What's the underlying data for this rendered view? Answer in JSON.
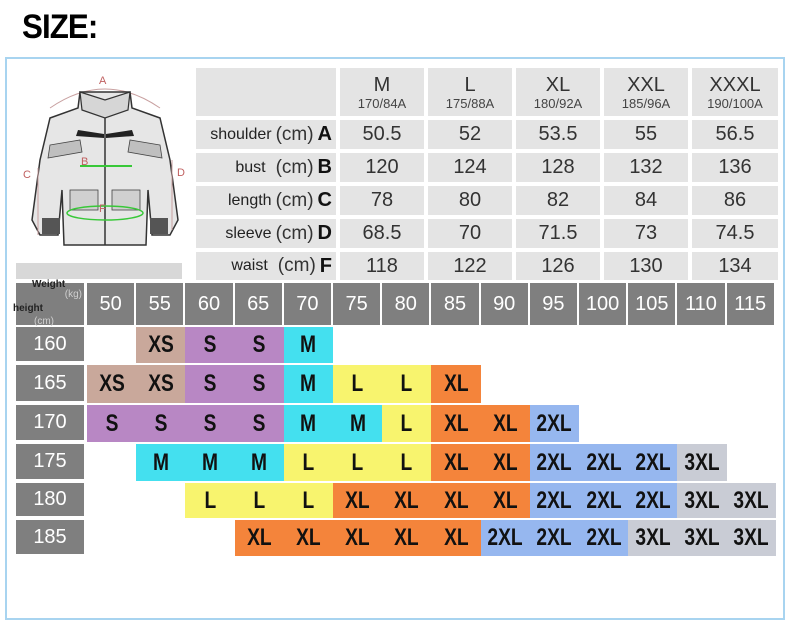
{
  "title": "SIZE:",
  "diagram": {
    "labels": {
      "a": "A",
      "b": "B",
      "c": "C",
      "d": "D",
      "f": "F"
    }
  },
  "measure_table": {
    "sizes": [
      {
        "size": "M",
        "hw": "170/84A"
      },
      {
        "size": "L",
        "hw": "175/88A"
      },
      {
        "size": "XL",
        "hw": "180/92A"
      },
      {
        "size": "XXL",
        "hw": "185/96A"
      },
      {
        "size": "XXXL",
        "hw": "190/100A"
      }
    ],
    "rows": [
      {
        "name": "shoulder",
        "unit": "(cm)",
        "letter": "A",
        "values": [
          "50.5",
          "52",
          "53.5",
          "55",
          "56.5"
        ]
      },
      {
        "name": "bust",
        "unit": "(cm)",
        "letter": "B",
        "values": [
          "120",
          "124",
          "128",
          "132",
          "136"
        ]
      },
      {
        "name": "length",
        "unit": "(cm)",
        "letter": "C",
        "values": [
          "78",
          "80",
          "82",
          "84",
          "86"
        ]
      },
      {
        "name": "sleeve",
        "unit": "(cm)",
        "letter": "D",
        "values": [
          "68.5",
          "70",
          "71.5",
          "73",
          "74.5"
        ]
      },
      {
        "name": "waist",
        "unit": "(cm)",
        "letter": "F",
        "values": [
          "118",
          "122",
          "126",
          "130",
          "134"
        ]
      }
    ]
  },
  "size_chart": {
    "weight_label": "Weight",
    "height_label": "height",
    "weight_unit": "(kg)",
    "height_unit": "(cm)",
    "weights": [
      "50",
      "55",
      "60",
      "65",
      "70",
      "75",
      "80",
      "85",
      "90",
      "95",
      "100",
      "105",
      "110",
      "115"
    ],
    "heights": [
      "160",
      "165",
      "170",
      "175",
      "180",
      "185"
    ],
    "colors": {
      "XS": "#c9a89b",
      "S": "#b887c4",
      "M": "#44e0ef",
      "L": "#f8f46e",
      "XL": "#f4843b",
      "2XL": "#96b7ef",
      "3XL": "#c9ccd5"
    },
    "grid": [
      [
        "",
        "XS",
        "S",
        "S",
        "M",
        "",
        "",
        "",
        "",
        "",
        "",
        "",
        "",
        ""
      ],
      [
        "XS",
        "XS",
        "S",
        "S",
        "M",
        "L",
        "L",
        "XL",
        "",
        "",
        "",
        "",
        "",
        ""
      ],
      [
        "S",
        "S",
        "S",
        "S",
        "M",
        "M",
        "L",
        "XL",
        "XL",
        "2XL",
        "",
        "",
        "",
        ""
      ],
      [
        "",
        "M",
        "M",
        "M",
        "L",
        "L",
        "L",
        "XL",
        "XL",
        "2XL",
        "2XL",
        "2XL",
        "3XL",
        ""
      ],
      [
        "",
        "",
        "L",
        "L",
        "L",
        "XL",
        "XL",
        "XL",
        "XL",
        "2XL",
        "2XL",
        "2XL",
        "3XL",
        "3XL"
      ],
      [
        "",
        "",
        "",
        "XL",
        "XL",
        "XL",
        "XL",
        "XL",
        "2XL",
        "2XL",
        "2XL",
        "3XL",
        "3XL",
        "3XL"
      ]
    ]
  }
}
